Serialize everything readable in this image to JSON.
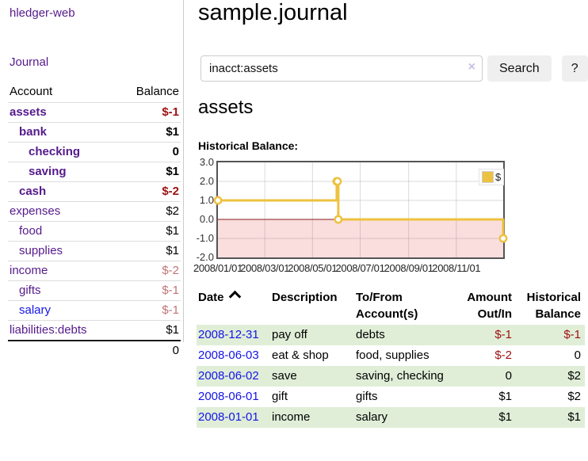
{
  "colors": {
    "link_purple": "#551a8b",
    "link_blue": "#1414e8",
    "negative_strong": "#9d1111",
    "negative_soft": "#c17474",
    "row_stripe_green": "#e0eed8",
    "button_bg": "#efefef",
    "chart_border": "#545454",
    "series_yellow": "#edc240"
  },
  "sidebar": {
    "app_title": "hledger-web",
    "journal_link": "Journal",
    "accounts_table": {
      "headers": {
        "account": "Account",
        "balance": "Balance"
      },
      "rows": [
        {
          "name": "assets",
          "balance": "$-1",
          "indent": 0,
          "bold": true,
          "tone": "neg-strong"
        },
        {
          "name": "bank",
          "balance": "$1",
          "indent": 1,
          "bold": true,
          "tone": ""
        },
        {
          "name": "checking",
          "balance": "0",
          "indent": 2,
          "bold": true,
          "tone": ""
        },
        {
          "name": "saving",
          "balance": "$1",
          "indent": 2,
          "bold": true,
          "tone": ""
        },
        {
          "name": "cash",
          "balance": "$-2",
          "indent": 1,
          "bold": true,
          "tone": "neg-strong"
        },
        {
          "name": "expenses",
          "balance": "$2",
          "indent": 0,
          "bold": false,
          "tone": ""
        },
        {
          "name": "food",
          "balance": "$1",
          "indent": 1,
          "bold": false,
          "tone": ""
        },
        {
          "name": "supplies",
          "balance": "$1",
          "indent": 1,
          "bold": false,
          "tone": ""
        },
        {
          "name": "income",
          "balance": "$-2",
          "indent": 0,
          "bold": false,
          "tone": "neg-soft"
        },
        {
          "name": "gifts",
          "balance": "$-1",
          "indent": 1,
          "bold": false,
          "tone": "neg-soft"
        },
        {
          "name": "salary",
          "balance": "$-1",
          "indent": 1,
          "bold": false,
          "tone": "neg-soft",
          "link_color": "blue"
        },
        {
          "name": "liabilities:debts",
          "balance": "$1",
          "indent": 0,
          "bold": false,
          "tone": ""
        }
      ],
      "total": "0"
    }
  },
  "header": {
    "title": "sample.journal"
  },
  "search": {
    "value": "inacct:assets",
    "clear_icon": "×",
    "button_label": "Search",
    "help_label": "?"
  },
  "account_page": {
    "title": "assets",
    "chart_label": "Historical Balance:"
  },
  "chart_data": {
    "type": "line",
    "step": true,
    "title": "Historical Balance:",
    "x": [
      "2008-01-01",
      "2008-06-01",
      "2008-06-02",
      "2008-06-03",
      "2008-12-31"
    ],
    "series": [
      {
        "name": "$",
        "color": "#edc240",
        "values": [
          1,
          2,
          2,
          0,
          -1
        ]
      }
    ],
    "xlim": [
      "2008-01-01",
      "2008-12-31"
    ],
    "ylim": [
      -2,
      3
    ],
    "yticks": [
      "3.0",
      "2.0",
      "1.0",
      "0.0",
      "-1.0",
      "-2.0"
    ],
    "xticks": [
      "2008/01/01",
      "2008/03/01",
      "2008/05/01",
      "2008/07/01",
      "2008/09/01",
      "2008/11/01"
    ],
    "legend": {
      "position": "top-right",
      "label": "$"
    },
    "grid": true,
    "negative_fill": "#fadddd",
    "zero_line": "#8b1a1a"
  },
  "register_table": {
    "columns": [
      {
        "label": "Date",
        "sort": "asc"
      },
      {
        "label": "Description"
      },
      {
        "label": "To/From Account(s)"
      },
      {
        "label": "Amount Out/In",
        "align": "right"
      },
      {
        "label": "Historical Balance",
        "align": "right"
      }
    ],
    "rows": [
      {
        "date": "2008-12-31",
        "description": "pay off",
        "accounts": "debts",
        "amount": {
          "text": "$-1",
          "negative": true
        },
        "balance": {
          "text": "$-1",
          "negative": true
        }
      },
      {
        "date": "2008-06-03",
        "description": "eat & shop",
        "accounts": "food, supplies",
        "amount": {
          "text": "$-2",
          "negative": true
        },
        "balance": {
          "text": "0",
          "negative": false
        }
      },
      {
        "date": "2008-06-02",
        "description": "save",
        "accounts": "saving, checking",
        "amount": {
          "text": "0",
          "negative": false
        },
        "balance": {
          "text": "$2",
          "negative": false
        }
      },
      {
        "date": "2008-06-01",
        "description": "gift",
        "accounts": "gifts",
        "amount": {
          "text": "$1",
          "negative": false
        },
        "balance": {
          "text": "$2",
          "negative": false
        }
      },
      {
        "date": "2008-01-01",
        "description": "income",
        "accounts": "salary",
        "amount": {
          "text": "$1",
          "negative": false
        },
        "balance": {
          "text": "$1",
          "negative": false
        }
      }
    ]
  }
}
